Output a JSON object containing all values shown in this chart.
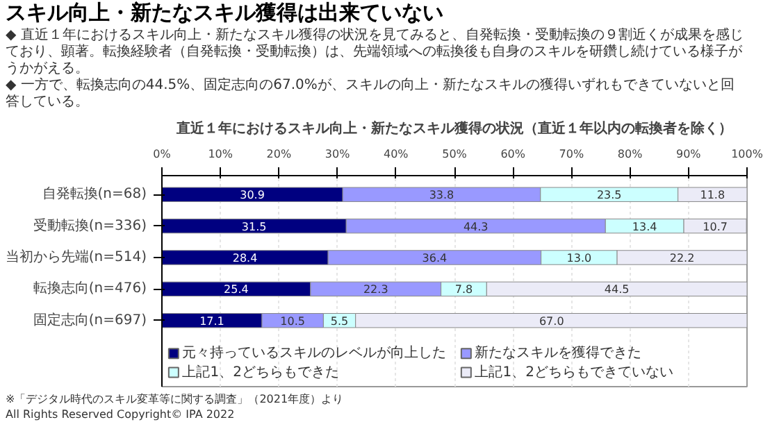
{
  "chart_data": {
    "type": "bar",
    "orientation": "horizontal",
    "stacked": true,
    "title": "スキル向上・新たなスキル獲得は出来ていない",
    "subtitle": "直近１年におけるスキル向上・新たなスキル獲得の状況（直近１年以内の転換者を除く）",
    "annotations": [
      "◆ 直近１年におけるスキル向上・新たなスキル獲得の状況を見てみると、自発転換・受動転換の９割近くが成果を感じており、顕著。転換経験者（自発転換・受動転換）は、先端領域への転換後も自身のスキルを研鑽し続けている様子がうかがえる。",
      "◆ 一方で、転換志向の44.5%、固定志向の67.0%が、スキルの向上・新たなスキルの獲得いずれもできていないと回答している。",
      "※「デジタル時代のスキル変革等に関する調査」（2021年度）より",
      "All Rights Reserved Copyright© IPA 2022"
    ],
    "categories": [
      "自発転換(n=68)",
      "受動転換(n=336)",
      "当初から先端(n=514)",
      "転換志向(n=476)",
      "固定志向(n=697)"
    ],
    "series": [
      {
        "name": "元々持っているスキルのレベルが向上した",
        "color": "#000080",
        "values": [
          30.9,
          31.5,
          28.4,
          25.4,
          17.1
        ],
        "value_labels": [
          "30.9",
          "31.5",
          "28.4",
          "25.4",
          "17.1"
        ]
      },
      {
        "name": "新たなスキルを獲得できた",
        "color": "#9999ff",
        "values": [
          33.8,
          44.3,
          36.4,
          22.3,
          10.5
        ],
        "value_labels": [
          "33.8",
          "44.3",
          "36.4",
          "22.3",
          "10.5"
        ]
      },
      {
        "name": "上記1、2どちらもできた",
        "color": "#ccffff",
        "values": [
          23.5,
          13.4,
          13.0,
          7.8,
          5.5
        ],
        "value_labels": [
          "23.5",
          "13.4",
          "13.0",
          "7.8",
          "5.5"
        ]
      },
      {
        "name": "上記1、2どちらもできていない",
        "color": "#ebebf7",
        "values": [
          11.8,
          10.7,
          22.2,
          44.5,
          67.0
        ],
        "value_labels": [
          "11.8",
          "10.7",
          "22.2",
          "44.5",
          "67.0"
        ]
      }
    ],
    "xlim": [
      0,
      100
    ],
    "xticks": [
      {
        "value": 0,
        "label": "0%"
      },
      {
        "value": 10,
        "label": "10%"
      },
      {
        "value": 20,
        "label": "20%"
      },
      {
        "value": 30,
        "label": "30%"
      },
      {
        "value": 40,
        "label": "40%"
      },
      {
        "value": 50,
        "label": "50%"
      },
      {
        "value": 60,
        "label": "60%"
      },
      {
        "value": 70,
        "label": "70%"
      },
      {
        "value": 80,
        "label": "80%"
      },
      {
        "value": 90,
        "label": "90%"
      },
      {
        "value": 100,
        "label": "100%"
      }
    ],
    "grid": "x",
    "legend": "bottom"
  }
}
